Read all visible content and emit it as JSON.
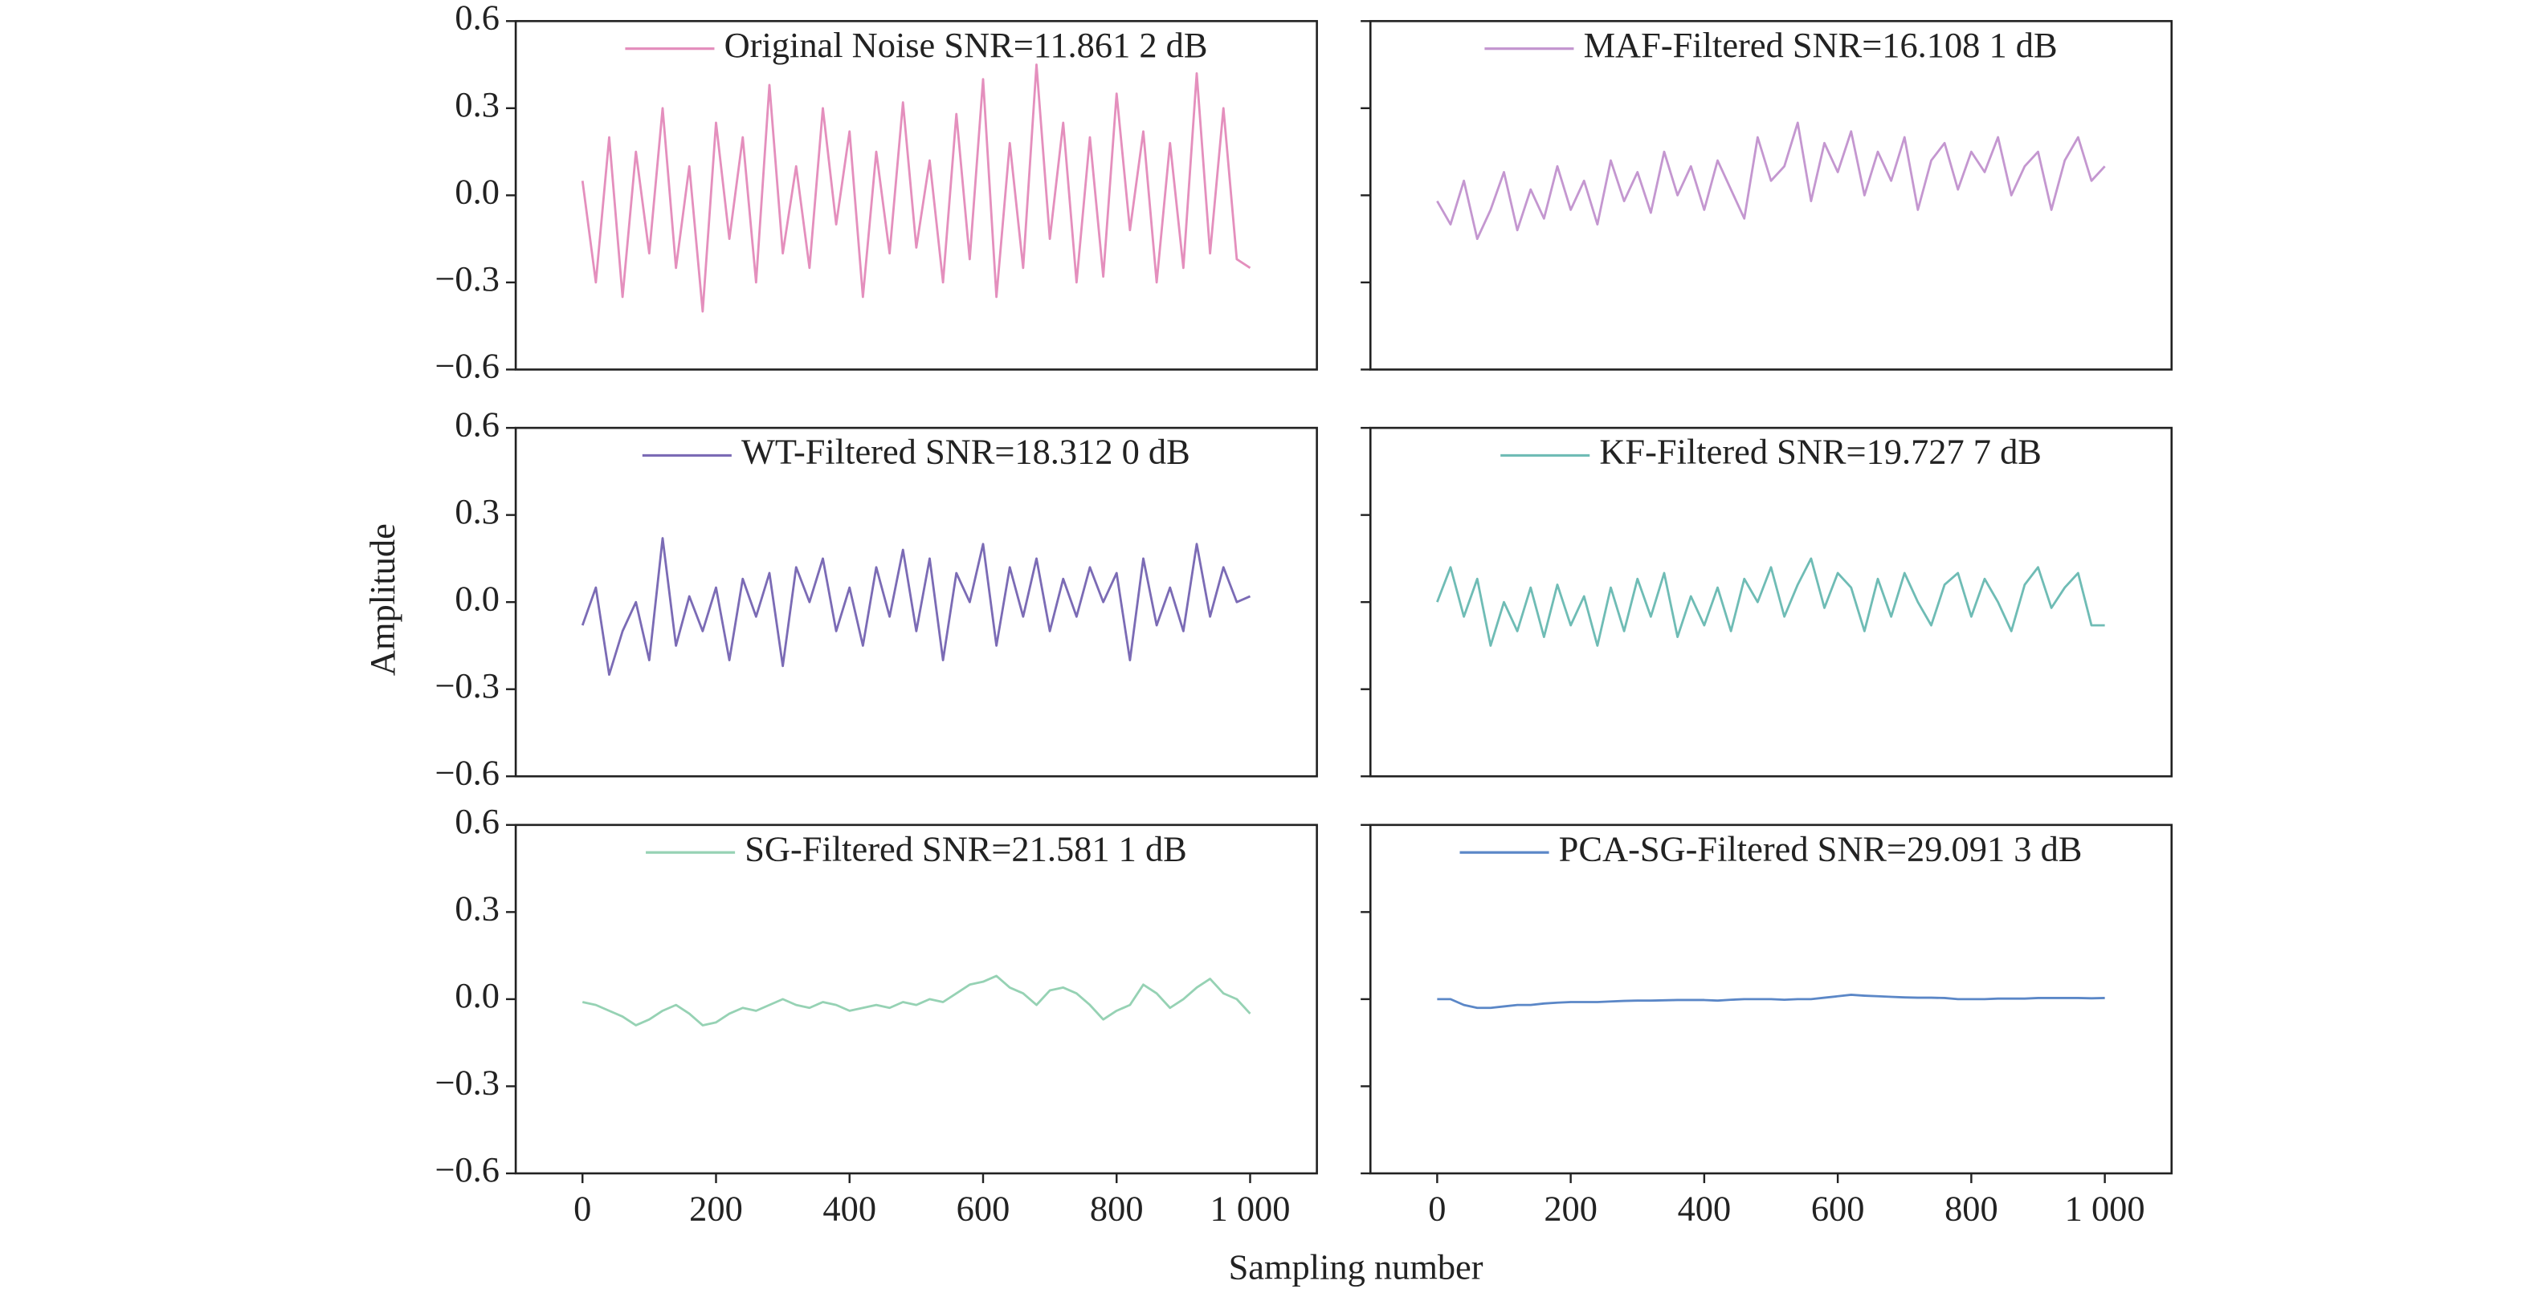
{
  "figure": {
    "xlabel": "Sampling number",
    "ylabel": "Amplitude"
  },
  "chart_data": [
    {
      "type": "line",
      "legend": "upper center",
      "xlim": [
        -100,
        1100
      ],
      "ylim": [
        -0.6,
        0.6
      ],
      "yticks": [
        {
          "value": 0.6,
          "label": "0.6"
        },
        {
          "value": 0.3,
          "label": "0.3"
        },
        {
          "value": 0,
          "label": "0.0"
        },
        {
          "value": -0.3,
          "label": "−0.3"
        },
        {
          "value": -0.6,
          "label": "−0.6"
        }
      ],
      "x": [
        0,
        20,
        40,
        60,
        80,
        100,
        120,
        140,
        160,
        180,
        200,
        220,
        240,
        260,
        280,
        300,
        320,
        340,
        360,
        380,
        400,
        420,
        440,
        460,
        480,
        500,
        520,
        540,
        560,
        580,
        600,
        620,
        640,
        660,
        680,
        700,
        720,
        740,
        760,
        780,
        800,
        820,
        840,
        860,
        880,
        900,
        920,
        940,
        960,
        980,
        1000
      ],
      "series": [
        {
          "name": "Original Noise SNR=11.861 2 dB",
          "color": "#e48fbd",
          "values": [
            0.05,
            -0.3,
            0.2,
            -0.35,
            0.15,
            -0.2,
            0.3,
            -0.25,
            0.1,
            -0.4,
            0.25,
            -0.15,
            0.2,
            -0.3,
            0.38,
            -0.2,
            0.1,
            -0.25,
            0.3,
            -0.1,
            0.22,
            -0.35,
            0.15,
            -0.2,
            0.32,
            -0.18,
            0.12,
            -0.3,
            0.28,
            -0.22,
            0.4,
            -0.35,
            0.18,
            -0.25,
            0.45,
            -0.15,
            0.25,
            -0.3,
            0.2,
            -0.28,
            0.35,
            -0.12,
            0.22,
            -0.3,
            0.18,
            -0.25,
            0.42,
            -0.2,
            0.3,
            -0.22,
            -0.25
          ]
        }
      ]
    },
    {
      "type": "line",
      "legend": "upper center",
      "xlim": [
        -100,
        1100
      ],
      "ylim": [
        -0.6,
        0.6
      ],
      "ytick_labels": false,
      "yticks": [
        0.6,
        0.3,
        0,
        -0.3,
        -0.6
      ],
      "x": [
        0,
        20,
        40,
        60,
        80,
        100,
        120,
        140,
        160,
        180,
        200,
        220,
        240,
        260,
        280,
        300,
        320,
        340,
        360,
        380,
        400,
        420,
        440,
        460,
        480,
        500,
        520,
        540,
        560,
        580,
        600,
        620,
        640,
        660,
        680,
        700,
        720,
        740,
        760,
        780,
        800,
        820,
        840,
        860,
        880,
        900,
        920,
        940,
        960,
        980,
        1000
      ],
      "series": [
        {
          "name": "MAF-Filtered SNR=16.108 1 dB",
          "color": "#c497d0",
          "values": [
            -0.02,
            -0.1,
            0.05,
            -0.15,
            -0.05,
            0.08,
            -0.12,
            0.02,
            -0.08,
            0.1,
            -0.05,
            0.05,
            -0.1,
            0.12,
            -0.02,
            0.08,
            -0.06,
            0.15,
            0.0,
            0.1,
            -0.05,
            0.12,
            0.02,
            -0.08,
            0.2,
            0.05,
            0.1,
            0.25,
            -0.02,
            0.18,
            0.08,
            0.22,
            0.0,
            0.15,
            0.05,
            0.2,
            -0.05,
            0.12,
            0.18,
            0.02,
            0.15,
            0.08,
            0.2,
            0.0,
            0.1,
            0.15,
            -0.05,
            0.12,
            0.2,
            0.05,
            0.1
          ]
        }
      ]
    },
    {
      "type": "line",
      "legend": "upper center",
      "xlim": [
        -100,
        1100
      ],
      "ylim": [
        -0.6,
        0.6
      ],
      "yticks": [
        {
          "value": 0.6,
          "label": "0.6"
        },
        {
          "value": 0.3,
          "label": "0.3"
        },
        {
          "value": 0,
          "label": "0.0"
        },
        {
          "value": -0.3,
          "label": "−0.3"
        },
        {
          "value": -0.6,
          "label": "−0.6"
        }
      ],
      "x": [
        0,
        20,
        40,
        60,
        80,
        100,
        120,
        140,
        160,
        180,
        200,
        220,
        240,
        260,
        280,
        300,
        320,
        340,
        360,
        380,
        400,
        420,
        440,
        460,
        480,
        500,
        520,
        540,
        560,
        580,
        600,
        620,
        640,
        660,
        680,
        700,
        720,
        740,
        760,
        780,
        800,
        820,
        840,
        860,
        880,
        900,
        920,
        940,
        960,
        980,
        1000
      ],
      "series": [
        {
          "name": "WT-Filtered SNR=18.312 0 dB",
          "color": "#7b6bb5",
          "values": [
            -0.08,
            0.05,
            -0.25,
            -0.1,
            0.0,
            -0.2,
            0.22,
            -0.15,
            0.02,
            -0.1,
            0.05,
            -0.2,
            0.08,
            -0.05,
            0.1,
            -0.22,
            0.12,
            0.0,
            0.15,
            -0.1,
            0.05,
            -0.15,
            0.12,
            -0.05,
            0.18,
            -0.1,
            0.15,
            -0.2,
            0.1,
            0.0,
            0.2,
            -0.15,
            0.12,
            -0.05,
            0.15,
            -0.1,
            0.08,
            -0.05,
            0.12,
            0.0,
            0.1,
            -0.2,
            0.15,
            -0.08,
            0.05,
            -0.1,
            0.2,
            -0.05,
            0.12,
            0.0,
            0.02
          ]
        }
      ]
    },
    {
      "type": "line",
      "legend": "upper center",
      "xlim": [
        -100,
        1100
      ],
      "ylim": [
        -0.6,
        0.6
      ],
      "ytick_labels": false,
      "yticks": [
        0.6,
        0.3,
        0,
        -0.3,
        -0.6
      ],
      "x": [
        0,
        20,
        40,
        60,
        80,
        100,
        120,
        140,
        160,
        180,
        200,
        220,
        240,
        260,
        280,
        300,
        320,
        340,
        360,
        380,
        400,
        420,
        440,
        460,
        480,
        500,
        520,
        540,
        560,
        580,
        600,
        620,
        640,
        660,
        680,
        700,
        720,
        740,
        760,
        780,
        800,
        820,
        840,
        860,
        880,
        900,
        920,
        940,
        960,
        980,
        1000
      ],
      "series": [
        {
          "name": "KF-Filtered SNR=19.727 7 dB",
          "color": "#6fbcb5",
          "values": [
            0.0,
            0.12,
            -0.05,
            0.08,
            -0.15,
            0.0,
            -0.1,
            0.05,
            -0.12,
            0.06,
            -0.08,
            0.02,
            -0.15,
            0.05,
            -0.1,
            0.08,
            -0.05,
            0.1,
            -0.12,
            0.02,
            -0.08,
            0.05,
            -0.1,
            0.08,
            0.0,
            0.12,
            -0.05,
            0.06,
            0.15,
            -0.02,
            0.1,
            0.05,
            -0.1,
            0.08,
            -0.05,
            0.1,
            0.0,
            -0.08,
            0.06,
            0.1,
            -0.05,
            0.08,
            0.0,
            -0.1,
            0.06,
            0.12,
            -0.02,
            0.05,
            0.1,
            -0.08,
            -0.08
          ]
        }
      ]
    },
    {
      "type": "line",
      "legend": "upper center",
      "xlim": [
        -100,
        1100
      ],
      "ylim": [
        -0.6,
        0.6
      ],
      "yticks": [
        {
          "value": 0.6,
          "label": "0.6"
        },
        {
          "value": 0.3,
          "label": "0.3"
        },
        {
          "value": 0,
          "label": "0.0"
        },
        {
          "value": -0.3,
          "label": "−0.3"
        },
        {
          "value": -0.6,
          "label": "−0.6"
        }
      ],
      "xticks": [
        0,
        200,
        400,
        600,
        800,
        {
          "value": 1000,
          "label": "1 000"
        }
      ],
      "x": [
        0,
        20,
        40,
        60,
        80,
        100,
        120,
        140,
        160,
        180,
        200,
        220,
        240,
        260,
        280,
        300,
        320,
        340,
        360,
        380,
        400,
        420,
        440,
        460,
        480,
        500,
        520,
        540,
        560,
        580,
        600,
        620,
        640,
        660,
        680,
        700,
        720,
        740,
        760,
        780,
        800,
        820,
        840,
        860,
        880,
        900,
        920,
        940,
        960,
        980,
        1000
      ],
      "series": [
        {
          "name": "SG-Filtered SNR=21.581 1 dB",
          "color": "#96d2b4",
          "values": [
            -0.01,
            -0.02,
            -0.04,
            -0.06,
            -0.09,
            -0.07,
            -0.04,
            -0.02,
            -0.05,
            -0.09,
            -0.08,
            -0.05,
            -0.03,
            -0.04,
            -0.02,
            0.0,
            -0.02,
            -0.03,
            -0.01,
            -0.02,
            -0.04,
            -0.03,
            -0.02,
            -0.03,
            -0.01,
            -0.02,
            0.0,
            -0.01,
            0.02,
            0.05,
            0.06,
            0.08,
            0.04,
            0.02,
            -0.02,
            0.03,
            0.04,
            0.02,
            -0.02,
            -0.07,
            -0.04,
            -0.02,
            0.05,
            0.02,
            -0.03,
            0.0,
            0.04,
            0.07,
            0.02,
            0.0,
            -0.05
          ]
        }
      ]
    },
    {
      "type": "line",
      "legend": "upper center",
      "xlim": [
        -100,
        1100
      ],
      "ylim": [
        -0.6,
        0.6
      ],
      "ytick_labels": false,
      "yticks": [
        0.6,
        0.3,
        0,
        -0.3,
        -0.6
      ],
      "xticks": [
        0,
        200,
        400,
        600,
        800,
        {
          "value": 1000,
          "label": "1 000"
        }
      ],
      "x": [
        0,
        20,
        40,
        60,
        80,
        100,
        120,
        140,
        160,
        180,
        200,
        220,
        240,
        260,
        280,
        300,
        320,
        340,
        360,
        380,
        400,
        420,
        440,
        460,
        480,
        500,
        520,
        540,
        560,
        580,
        600,
        620,
        640,
        660,
        680,
        700,
        720,
        740,
        760,
        780,
        800,
        820,
        840,
        860,
        880,
        900,
        920,
        940,
        960,
        980,
        1000
      ],
      "series": [
        {
          "name": "PCA-SG-Filtered SNR=29.091 3 dB",
          "color": "#5b87c7",
          "values": [
            0.0,
            0.0,
            -0.02,
            -0.03,
            -0.03,
            -0.025,
            -0.02,
            -0.02,
            -0.015,
            -0.012,
            -0.01,
            -0.01,
            -0.01,
            -0.008,
            -0.006,
            -0.005,
            -0.005,
            -0.004,
            -0.003,
            -0.003,
            -0.003,
            -0.005,
            -0.002,
            0.0,
            0.0,
            0.0,
            -0.002,
            0.0,
            0.0,
            0.005,
            0.01,
            0.015,
            0.012,
            0.01,
            0.008,
            0.006,
            0.005,
            0.005,
            0.004,
            0.0,
            0.0,
            0.0,
            0.002,
            0.002,
            0.002,
            0.004,
            0.004,
            0.004,
            0.004,
            0.003,
            0.004
          ]
        }
      ]
    }
  ]
}
